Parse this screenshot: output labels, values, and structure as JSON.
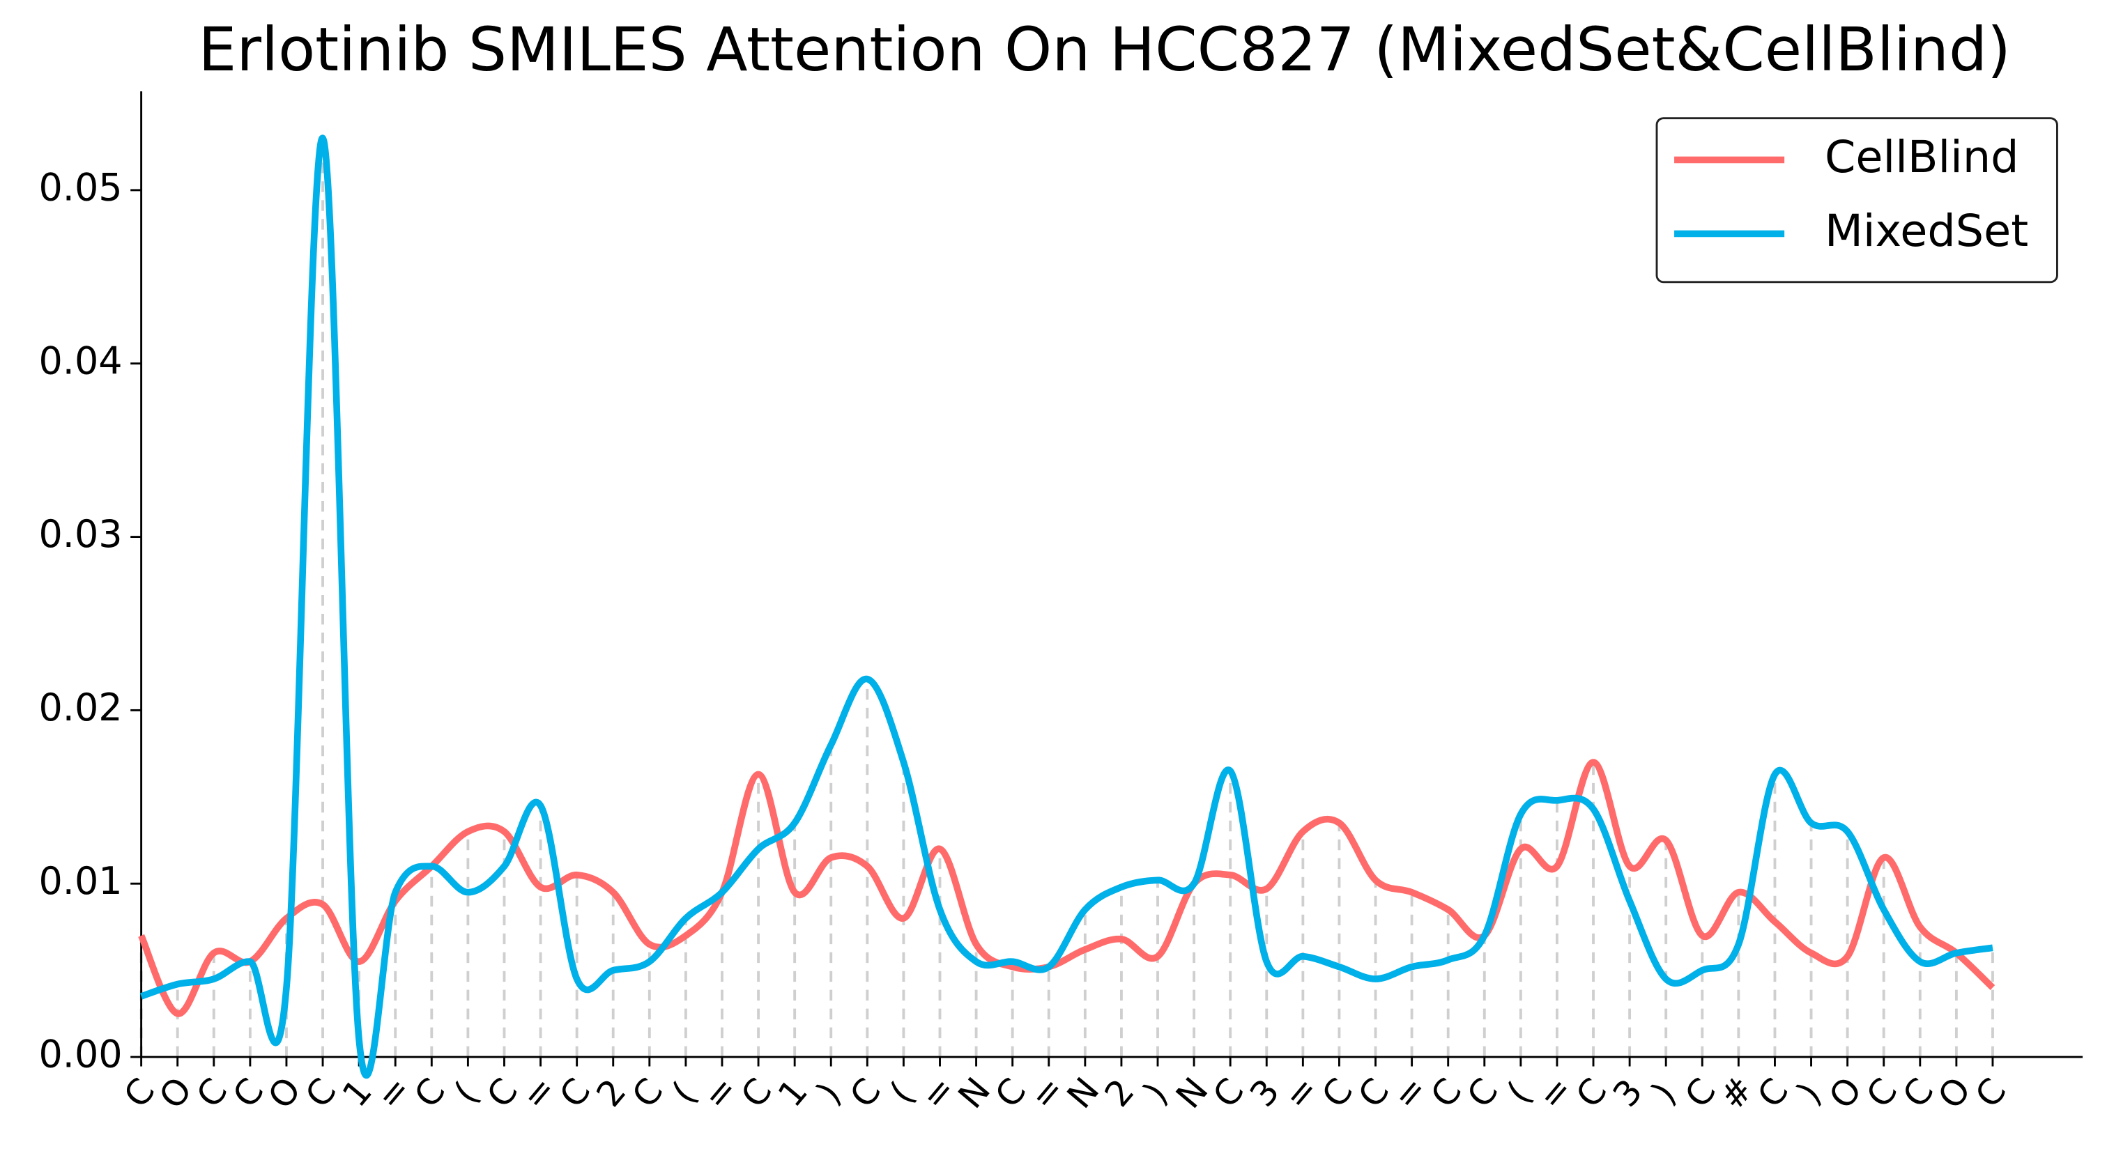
{
  "chart_data": {
    "type": "line",
    "title": "Erlotinib SMILES Attention On HCC827 (MixedSet&CellBlind)",
    "categories": [
      "C",
      "O",
      "C",
      "C",
      "O",
      "C",
      "1",
      "=",
      "C",
      "(",
      "C",
      "=",
      "C",
      "2",
      "C",
      "(",
      "=",
      "C",
      "1",
      ")",
      "C",
      "(",
      "=",
      "N",
      "C",
      "=",
      "N",
      "2",
      ")",
      "N",
      "C",
      "3",
      "=",
      "C",
      "C",
      "=",
      "C",
      "C",
      "(",
      "=",
      "C",
      "3",
      ")",
      "C",
      "#",
      "C",
      ")",
      "O",
      "C",
      "C",
      "O",
      "C"
    ],
    "series": [
      {
        "name": "CellBlind",
        "color": "#ff6b6b",
        "values": [
          0.007,
          0.0025,
          0.006,
          0.0055,
          0.008,
          0.0088,
          0.0055,
          0.009,
          0.011,
          0.013,
          0.013,
          0.0098,
          0.0105,
          0.0095,
          0.0065,
          0.007,
          0.0095,
          0.0163,
          0.0095,
          0.0115,
          0.011,
          0.008,
          0.012,
          0.0065,
          0.0052,
          0.0052,
          0.0062,
          0.0068,
          0.0058,
          0.01,
          0.0105,
          0.0097,
          0.013,
          0.0135,
          0.0102,
          0.0095,
          0.0085,
          0.007,
          0.012,
          0.011,
          0.017,
          0.011,
          0.0125,
          0.007,
          0.0095,
          0.0078,
          0.006,
          0.0058,
          0.0115,
          0.0075,
          0.006,
          0.004
        ]
      },
      {
        "name": "MixedSet",
        "color": "#00b0e8",
        "values": [
          0.0035,
          0.0042,
          0.0045,
          0.0055,
          0.004,
          0.053,
          0.001,
          0.0095,
          0.011,
          0.0095,
          0.011,
          0.0145,
          0.0045,
          0.005,
          0.0055,
          0.008,
          0.0095,
          0.012,
          0.0135,
          0.018,
          0.0218,
          0.017,
          0.0085,
          0.0055,
          0.0055,
          0.0052,
          0.0085,
          0.0098,
          0.0102,
          0.01,
          0.0165,
          0.0055,
          0.0058,
          0.0052,
          0.0045,
          0.0052,
          0.0056,
          0.007,
          0.014,
          0.0148,
          0.0143,
          0.009,
          0.0045,
          0.005,
          0.0065,
          0.0163,
          0.0135,
          0.013,
          0.0085,
          0.0055,
          0.006,
          0.0063
        ]
      }
    ],
    "ylim": [
      0,
      0.0557
    ],
    "yticks": [
      {
        "value": 0,
        "label": "0.00"
      },
      0.01,
      0.02,
      0.03,
      0.04,
      0.05
    ],
    "legend": "upper right"
  }
}
